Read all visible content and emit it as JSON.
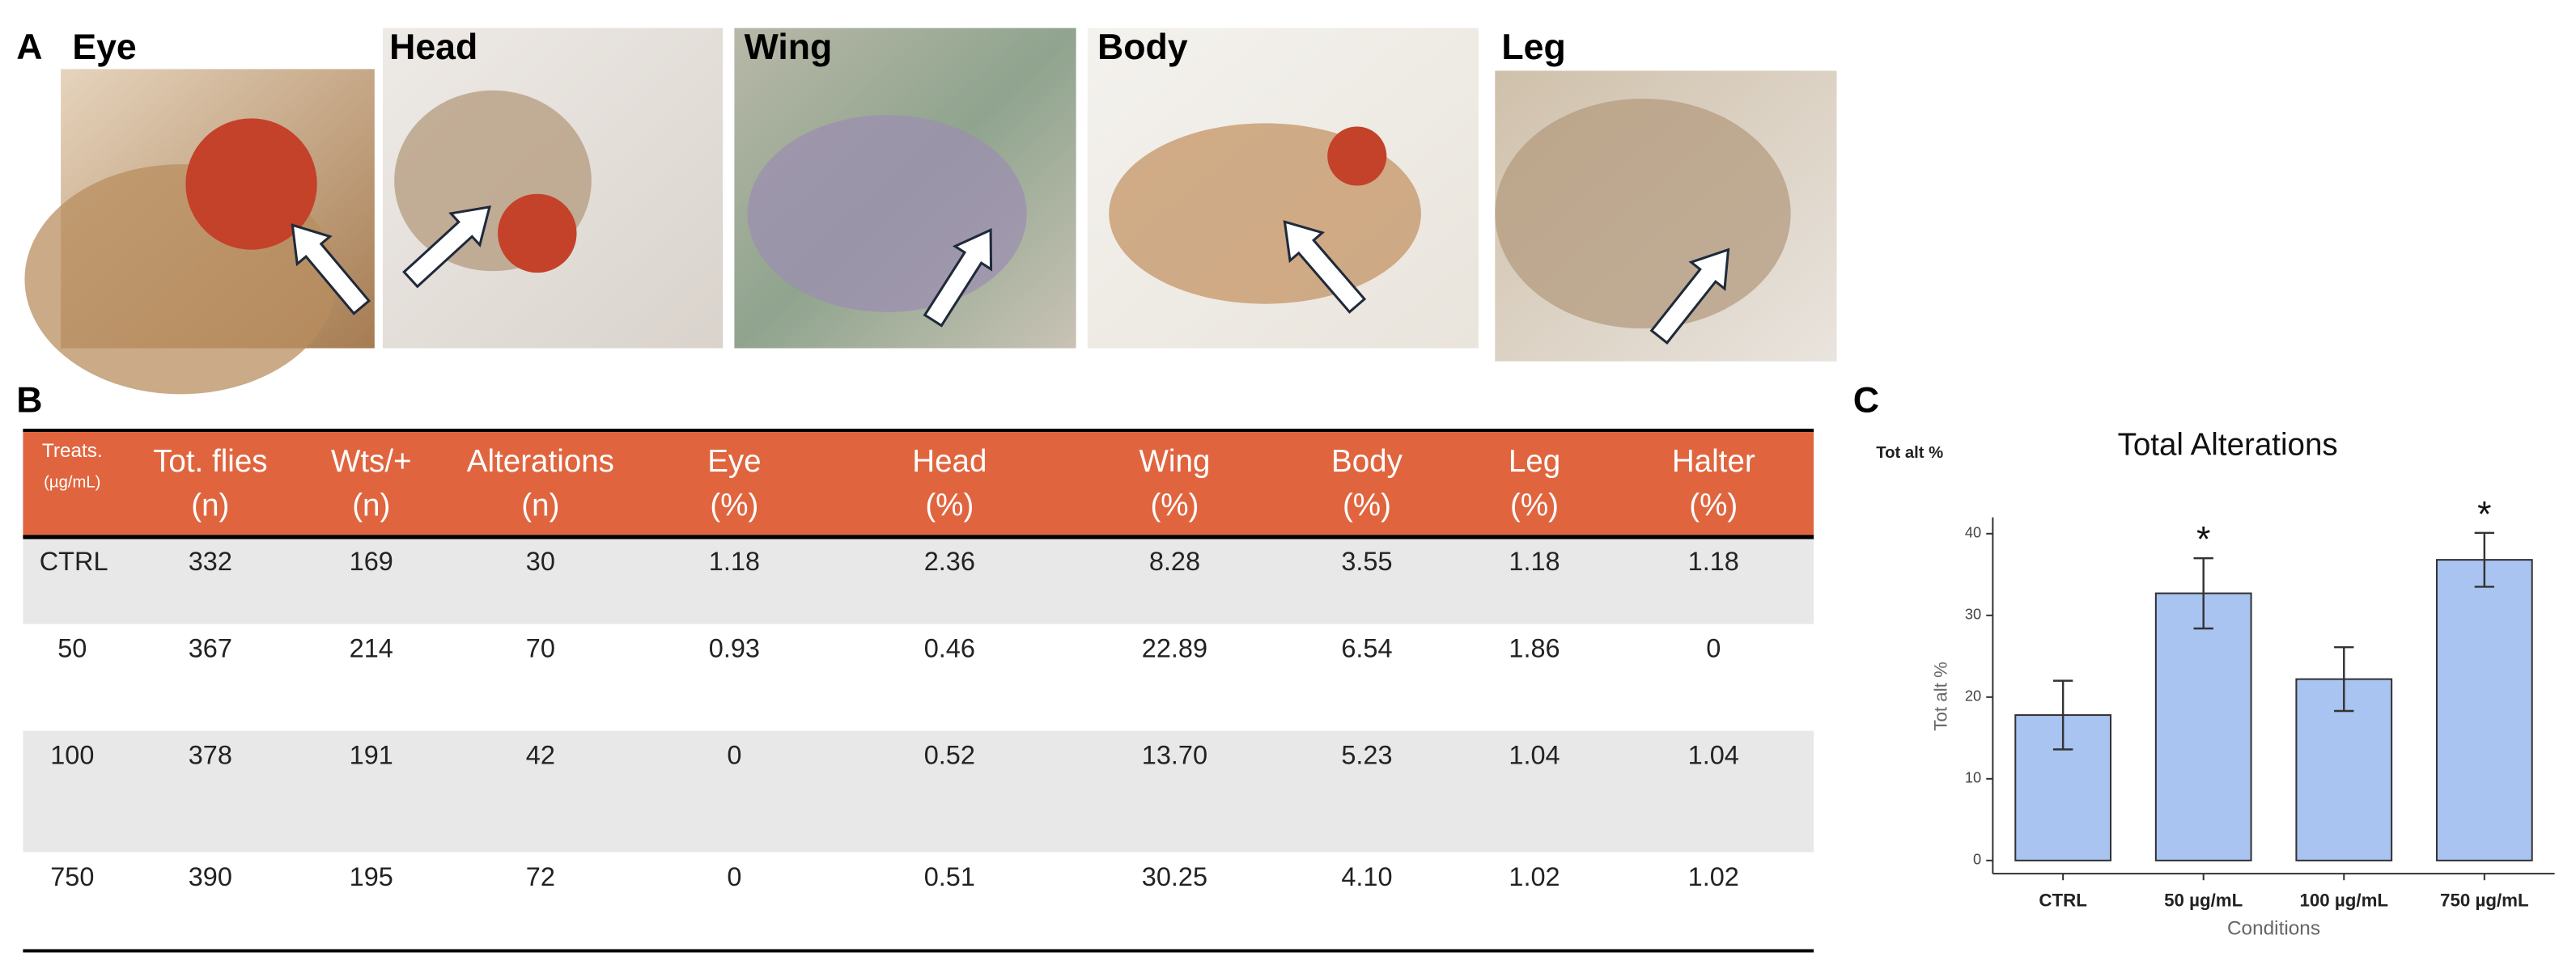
{
  "panels": {
    "a": "A",
    "b": "B",
    "c": "C"
  },
  "photos": [
    "Eye",
    "Head",
    "Wing",
    "Body",
    "Leg"
  ],
  "table": {
    "header": [
      [
        "Treats.",
        "(µg/mL)"
      ],
      [
        "Tot. flies",
        "(n)"
      ],
      [
        "Wts/+",
        "(n)"
      ],
      [
        "Alterations",
        "(n)"
      ],
      [
        "Eye",
        "(%)"
      ],
      [
        "Head",
        "(%)"
      ],
      [
        "Wing",
        "(%)"
      ],
      [
        "Body",
        "(%)"
      ],
      [
        "Leg",
        "(%)"
      ],
      [
        "Halter",
        "(%)"
      ]
    ],
    "rows": [
      [
        "CTRL",
        "332",
        "169",
        "30",
        "1.18",
        "2.36",
        "8.28",
        "3.55",
        "1.18",
        "1.18"
      ],
      [
        "50",
        "367",
        "214",
        "70",
        "0.93",
        "0.46",
        "22.89",
        "6.54",
        "1.86",
        "0"
      ],
      [
        "100",
        "378",
        "191",
        "42",
        "0",
        "0.52",
        "13.70",
        "5.23",
        "1.04",
        "1.04"
      ],
      [
        "750",
        "390",
        "195",
        "72",
        "0",
        "0.51",
        "30.25",
        "4.10",
        "1.02",
        "1.02"
      ]
    ]
  },
  "chart_data": {
    "type": "bar",
    "title": "Total Alterations",
    "corner_label": "Tot alt %",
    "y_label": "Tot alt %",
    "x_label": "Conditions",
    "categories": [
      "CTRL",
      "50 µg/mL",
      "100 µg/mL",
      "750 µg/mL"
    ],
    "values": [
      17.8,
      32.7,
      22.2,
      36.8
    ],
    "errors": [
      4.2,
      4.3,
      3.9,
      3.3
    ],
    "annotations": [
      null,
      "*",
      null,
      "*"
    ],
    "color": "#a9c4f0",
    "ylim": [
      0,
      42
    ],
    "yticks": [
      0,
      10,
      20,
      30,
      40
    ]
  }
}
